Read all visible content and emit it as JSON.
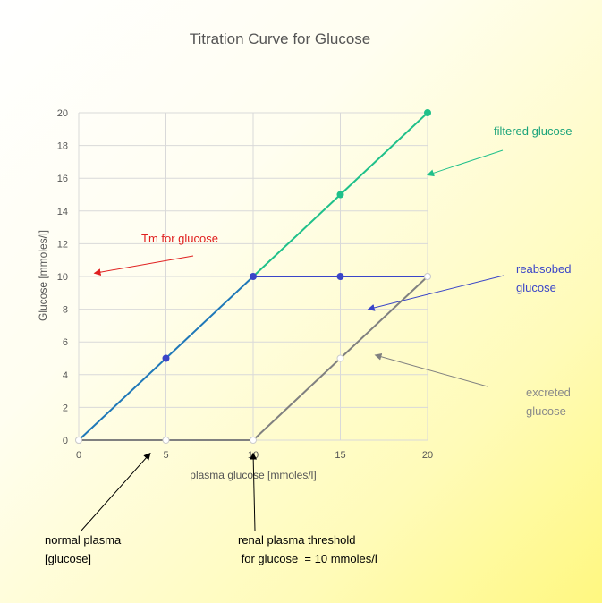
{
  "chart_data": {
    "type": "line",
    "title": "Titration Curve for Glucose",
    "xlabel": "plasma glucose [mmoles/l]",
    "ylabel": "Glucose [mmoles/l]",
    "xlim": [
      0,
      20
    ],
    "ylim": [
      0,
      20
    ],
    "xticks": [
      0,
      5,
      10,
      15,
      20
    ],
    "yticks": [
      0,
      2,
      4,
      6,
      8,
      10,
      12,
      14,
      16,
      18,
      20
    ],
    "grid": true,
    "series": [
      {
        "name": "filtered glucose",
        "x": [
          0,
          5,
          10,
          15,
          20
        ],
        "y": [
          0,
          5,
          10,
          15,
          20
        ],
        "color": "#1fc08a"
      },
      {
        "name": "reabsorbed glucose",
        "x": [
          0,
          5,
          10,
          15,
          20
        ],
        "y": [
          0,
          5,
          10,
          10,
          10
        ],
        "color": "#3a45c8"
      },
      {
        "name": "excreted glucose",
        "x": [
          0,
          5,
          10,
          15,
          20
        ],
        "y": [
          0,
          0,
          0,
          5,
          10
        ],
        "color": "#808080"
      }
    ],
    "annotations": [
      {
        "id": "filtered",
        "lines": [
          "filtered glucose"
        ],
        "color": "#1aa37a",
        "points_to": [
          20,
          16.2
        ]
      },
      {
        "id": "reabsorbed",
        "lines": [
          "reabsobed",
          "glucose"
        ],
        "color": "#3a45c8",
        "points_to": [
          16.6,
          8
        ]
      },
      {
        "id": "tm",
        "lines": [
          "Tm for glucose"
        ],
        "color": "#e02020",
        "points_to": [
          0.9,
          10.2
        ]
      },
      {
        "id": "excreted",
        "lines": [
          "excreted",
          "glucose"
        ],
        "color": "#8a8a8a",
        "points_to": [
          17,
          5.2
        ]
      },
      {
        "id": "normal",
        "lines": [
          "normal plasma",
          "[glucose]"
        ],
        "color": "#000000",
        "points_to": [
          4.1,
          -0.8
        ]
      },
      {
        "id": "threshold",
        "lines": [
          "renal plasma threshold",
          " for glucose  = 10 mmoles/l"
        ],
        "color": "#000000",
        "points_to": [
          10,
          -0.8
        ]
      }
    ]
  }
}
